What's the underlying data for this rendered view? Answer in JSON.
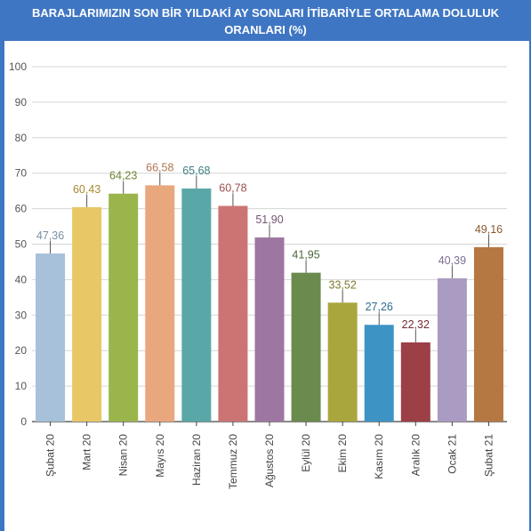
{
  "header": {
    "title_line1": "BARAJLARIMIZIN SON BİR YILDAKİ AY SONLARI İTİBARİYLE ORTALAMA DOLULUK",
    "title_line2": "ORANLARI (%)"
  },
  "chart_data": {
    "type": "bar",
    "title": "BARAJLARIMIZIN SON BİR YILDAKİ AY SONLARI İTİBARİYLE ORTALAMA DOLULUK ORANLARI (%)",
    "categories": [
      "Şubat 20",
      "Mart 20",
      "Nisan 20",
      "Mayıs 20",
      "Haziran 20",
      "Temmuz 20",
      "Ağustos 20",
      "Eylül 20",
      "Ekim 20",
      "Kasım 20",
      "Aralık 20",
      "Ocak 21",
      "Şubat 21"
    ],
    "values": [
      47.36,
      60.43,
      64.23,
      66.58,
      65.68,
      60.78,
      51.9,
      41.95,
      33.52,
      27.26,
      22.32,
      40.39,
      49.16
    ],
    "value_labels": [
      "47,36",
      "60,43",
      "64,23",
      "66,58",
      "65,68",
      "60,78",
      "51,90",
      "41,95",
      "33,52",
      "27,26",
      "22,32",
      "40,39",
      "49,16"
    ],
    "bar_colors": [
      "#a6c1d9",
      "#e8c767",
      "#9ab54c",
      "#e9a77d",
      "#5aa7a8",
      "#cc7474",
      "#9e76a2",
      "#6b8a4d",
      "#aaa63e",
      "#3d94c4",
      "#9c3f47",
      "#aa9bc2",
      "#b57842"
    ],
    "label_colors": [
      "#7a8fa3",
      "#a88a30",
      "#6d8430",
      "#b07550",
      "#3d7f80",
      "#9a4f4f",
      "#735576",
      "#4c653a",
      "#7c7a2c",
      "#2b6d91",
      "#712c33",
      "#7d6f93",
      "#8a5a31"
    ],
    "yticks": [
      0,
      10,
      20,
      30,
      40,
      50,
      60,
      70,
      80,
      90,
      100
    ],
    "ylim": [
      0,
      100
    ],
    "xlabel": "",
    "ylabel": "",
    "grid": true,
    "legend": "none"
  }
}
